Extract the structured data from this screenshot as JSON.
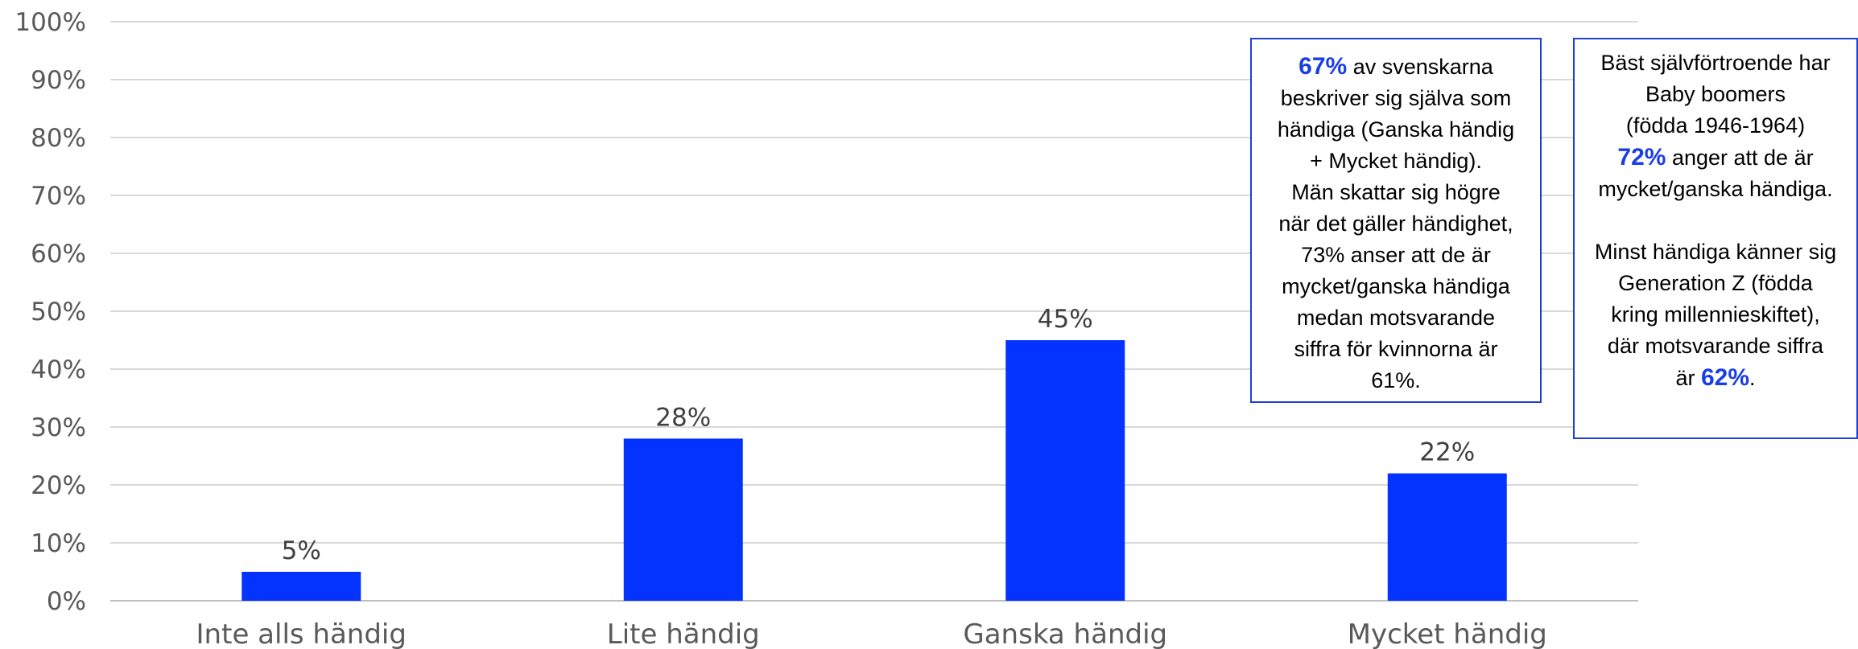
{
  "colors": {
    "bar": "#0433ff",
    "accent_text": "#1a3ee6",
    "grid": "#d9d9d9",
    "box_border": "#1f3fd9"
  },
  "chart_data": {
    "type": "bar",
    "categories": [
      "Inte alls händig",
      "Lite händig",
      "Ganska händig",
      "Mycket händig"
    ],
    "values": [
      5,
      28,
      45,
      22
    ],
    "data_labels": [
      "5%",
      "28%",
      "45%",
      "22%"
    ],
    "ylim": [
      0,
      100
    ],
    "yticks": [
      "0%",
      "10%",
      "20%",
      "30%",
      "40%",
      "50%",
      "60%",
      "70%",
      "80%",
      "90%",
      "100%"
    ],
    "grid": true,
    "legend": "none"
  },
  "notes": {
    "box1": {
      "highlight": "67%",
      "lines": [
        " av svenskarna",
        "beskriver sig själva som",
        "händiga (Ganska händig",
        "+ Mycket händig).",
        "Män skattar sig högre",
        "när det gäller händighet,",
        "73% anser att de är",
        "mycket/ganska händiga",
        "medan motsvarande",
        "siffra för kvinnorna är",
        "61%."
      ]
    },
    "box2": {
      "lines_top": [
        "Bäst självförtroende har",
        "Baby boomers",
        "(födda 1946-1964)"
      ],
      "highlight_72": "72%",
      "line_after_72": " anger att de är",
      "line_mid": "mycket/ganska händiga.",
      "lines_bottom": [
        "Minst händiga känner sig",
        "Generation Z (födda",
        "kring millennieskiftet),",
        "där motsvarande siffra"
      ],
      "last_prefix": "är ",
      "highlight_62": "62%",
      "last_suffix": "."
    }
  }
}
